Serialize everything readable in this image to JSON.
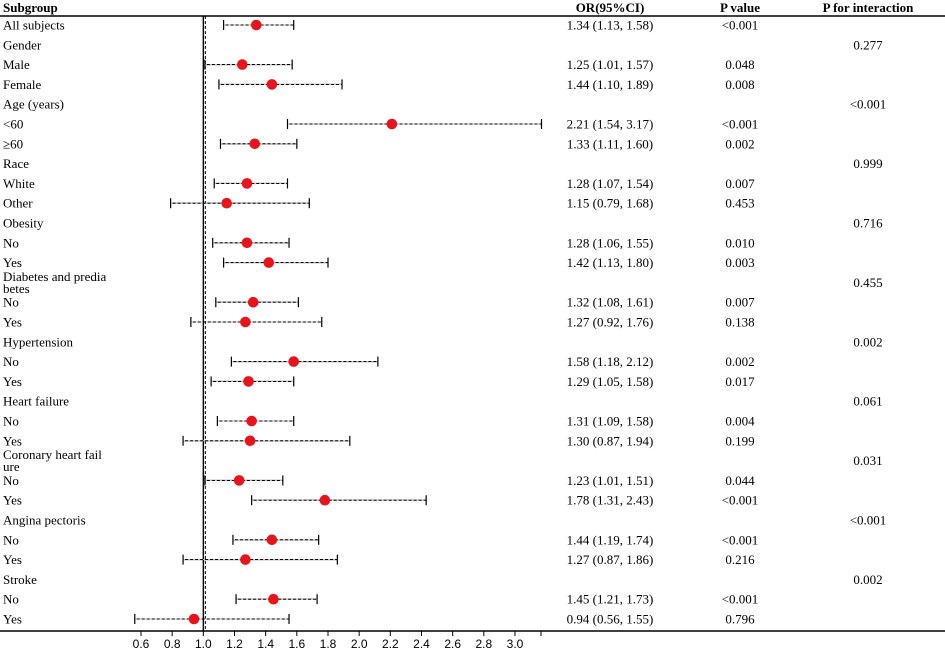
{
  "headers": {
    "subgroup": "Subgroup",
    "or": "OR(95%CI)",
    "p": "P value",
    "p_interaction": "P for interaction"
  },
  "chart_data": {
    "type": "forest",
    "xlabel": "",
    "x_ticks": [
      "0.6",
      "0.8",
      "1.0",
      "1.2",
      "1.4",
      "1.6",
      "1.8",
      "2.0",
      "2.2",
      "2.4",
      "2.6",
      "2.8",
      "3.0"
    ],
    "xlim": [
      0.6,
      3.0
    ],
    "reference_line": 1.0,
    "rows": [
      {
        "label": "All subjects",
        "or": 1.34,
        "lo": 1.13,
        "hi": 1.58,
        "ci_text": "1.34 (1.13, 1.58)",
        "p": "<0.001",
        "p_int": ""
      },
      {
        "label": "Gender",
        "p_int": "0.277"
      },
      {
        "label": "Male",
        "or": 1.25,
        "lo": 1.01,
        "hi": 1.57,
        "ci_text": "1.25 (1.01, 1.57)",
        "p": "0.048",
        "p_int": ""
      },
      {
        "label": "Female",
        "or": 1.44,
        "lo": 1.1,
        "hi": 1.89,
        "ci_text": "1.44 (1.10, 1.89)",
        "p": "0.008",
        "p_int": ""
      },
      {
        "label": "Age (years)",
        "p_int": "<0.001"
      },
      {
        "label": "<60",
        "or": 2.21,
        "lo": 1.54,
        "hi": 3.17,
        "ci_text": "2.21 (1.54, 3.17)",
        "p": "<0.001",
        "p_int": ""
      },
      {
        "label": "≥60",
        "or": 1.33,
        "lo": 1.11,
        "hi": 1.6,
        "ci_text": "1.33 (1.11, 1.60)",
        "p": "0.002",
        "p_int": ""
      },
      {
        "label": "Race",
        "p_int": "0.999"
      },
      {
        "label": "White",
        "or": 1.28,
        "lo": 1.07,
        "hi": 1.54,
        "ci_text": "1.28 (1.07, 1.54)",
        "p": "0.007",
        "p_int": ""
      },
      {
        "label": "Other",
        "or": 1.15,
        "lo": 0.79,
        "hi": 1.68,
        "ci_text": "1.15 (0.79, 1.68)",
        "p": "0.453",
        "p_int": ""
      },
      {
        "label": "Obesity",
        "p_int": "0.716"
      },
      {
        "label": "No",
        "or": 1.28,
        "lo": 1.06,
        "hi": 1.55,
        "ci_text": "1.28 (1.06, 1.55)",
        "p": "0.010",
        "p_int": ""
      },
      {
        "label": "Yes",
        "or": 1.42,
        "lo": 1.13,
        "hi": 1.8,
        "ci_text": "1.42 (1.13, 1.80)",
        "p": "0.003",
        "p_int": ""
      },
      {
        "label": "Diabetes and predia",
        "label2": "betes",
        "p_int": "0.455"
      },
      {
        "label": "No",
        "or": 1.32,
        "lo": 1.08,
        "hi": 1.61,
        "ci_text": "1.32 (1.08, 1.61)",
        "p": "0.007",
        "p_int": ""
      },
      {
        "label": "Yes",
        "or": 1.27,
        "lo": 0.92,
        "hi": 1.76,
        "ci_text": "1.27 (0.92, 1.76)",
        "p": "0.138",
        "p_int": ""
      },
      {
        "label": "Hypertension",
        "p_int": "0.002"
      },
      {
        "label": "No",
        "or": 1.58,
        "lo": 1.18,
        "hi": 2.12,
        "ci_text": "1.58 (1.18, 2.12)",
        "p": "0.002",
        "p_int": ""
      },
      {
        "label": "Yes",
        "or": 1.29,
        "lo": 1.05,
        "hi": 1.58,
        "ci_text": "1.29 (1.05, 1.58)",
        "p": "0.017",
        "p_int": ""
      },
      {
        "label": "Heart failure",
        "p_int": "0.061"
      },
      {
        "label": "No",
        "or": 1.31,
        "lo": 1.09,
        "hi": 1.58,
        "ci_text": "1.31 (1.09, 1.58)",
        "p": "0.004",
        "p_int": ""
      },
      {
        "label": "Yes",
        "or": 1.3,
        "lo": 0.87,
        "hi": 1.94,
        "ci_text": "1.30 (0.87, 1.94)",
        "p": "0.199",
        "p_int": ""
      },
      {
        "label": "Coronary heart fail",
        "label2": "ure",
        "p_int": "0.031"
      },
      {
        "label": "No",
        "or": 1.23,
        "lo": 1.01,
        "hi": 1.51,
        "ci_text": "1.23 (1.01, 1.51)",
        "p": "0.044",
        "p_int": ""
      },
      {
        "label": "Yes",
        "or": 1.78,
        "lo": 1.31,
        "hi": 2.43,
        "ci_text": "1.78 (1.31, 2.43)",
        "p": "<0.001",
        "p_int": ""
      },
      {
        "label": "Angina pectoris",
        "p_int": "<0.001"
      },
      {
        "label": "No",
        "or": 1.44,
        "lo": 1.19,
        "hi": 1.74,
        "ci_text": "1.44 (1.19, 1.74)",
        "p": "<0.001",
        "p_int": ""
      },
      {
        "label": "Yes",
        "or": 1.27,
        "lo": 0.87,
        "hi": 1.86,
        "ci_text": "1.27 (0.87, 1.86)",
        "p": "0.216",
        "p_int": ""
      },
      {
        "label": "Stroke",
        "p_int": "0.002"
      },
      {
        "label": "No",
        "or": 1.45,
        "lo": 1.21,
        "hi": 1.73,
        "ci_text": "1.45 (1.21, 1.73)",
        "p": "<0.001",
        "p_int": ""
      },
      {
        "label": "Yes",
        "or": 0.94,
        "lo": 0.56,
        "hi": 1.55,
        "ci_text": "0.94 (0.56, 1.55)",
        "p": "0.796",
        "p_int": ""
      }
    ]
  },
  "colors": {
    "point": "#e8141c",
    "line": "#000000"
  }
}
